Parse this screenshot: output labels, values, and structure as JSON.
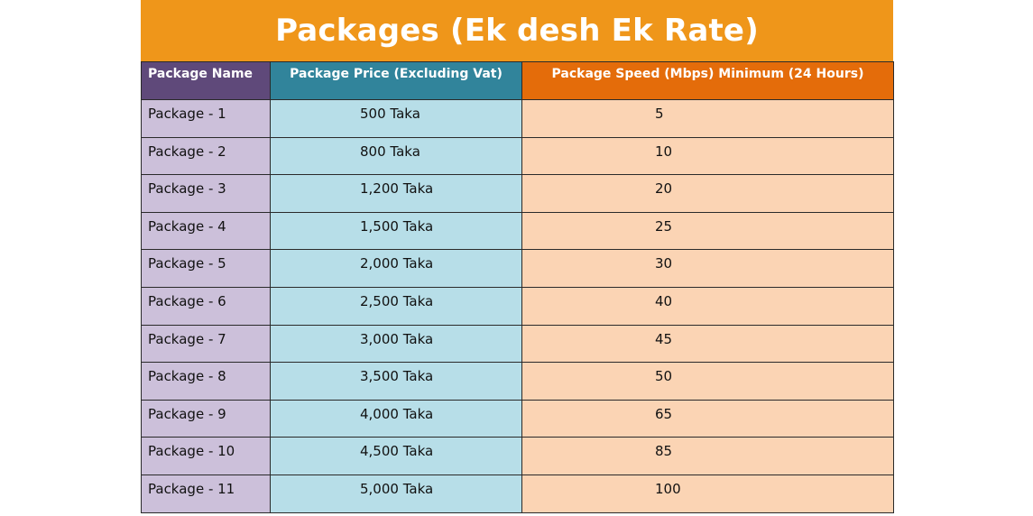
{
  "title": "Packages (Ek desh Ek Rate)",
  "columns": [
    "Package Name",
    "Package Price (Excluding Vat)",
    "Package Speed (Mbps) Minimum (24 Hours)"
  ],
  "colors": {
    "title_bg": "#ef961a",
    "header_name_bg": "#5f497a",
    "header_price_bg": "#31849b",
    "header_speed_bg": "#e46c0a",
    "cell_name_bg": "#ccc0da",
    "cell_price_bg": "#b7dee8",
    "cell_speed_bg": "#fbd4b4"
  },
  "rows": [
    {
      "name": "Package - 1",
      "price": "500 Taka",
      "speed": "5"
    },
    {
      "name": "Package - 2",
      "price": "800 Taka",
      "speed": "10"
    },
    {
      "name": "Package - 3",
      "price": "1,200 Taka",
      "speed": "20"
    },
    {
      "name": "Package - 4",
      "price": "1,500 Taka",
      "speed": "25"
    },
    {
      "name": "Package - 5",
      "price": "2,000 Taka",
      "speed": "30"
    },
    {
      "name": "Package - 6",
      "price": "2,500 Taka",
      "speed": "40"
    },
    {
      "name": "Package - 7",
      "price": "3,000 Taka",
      "speed": "45"
    },
    {
      "name": "Package - 8",
      "price": "3,500 Taka",
      "speed": "50"
    },
    {
      "name": "Package - 9",
      "price": "4,000 Taka",
      "speed": "65"
    },
    {
      "name": "Package - 10",
      "price": "4,500 Taka",
      "speed": "85"
    },
    {
      "name": "Package - 11",
      "price": "5,000 Taka",
      "speed": "100"
    }
  ]
}
